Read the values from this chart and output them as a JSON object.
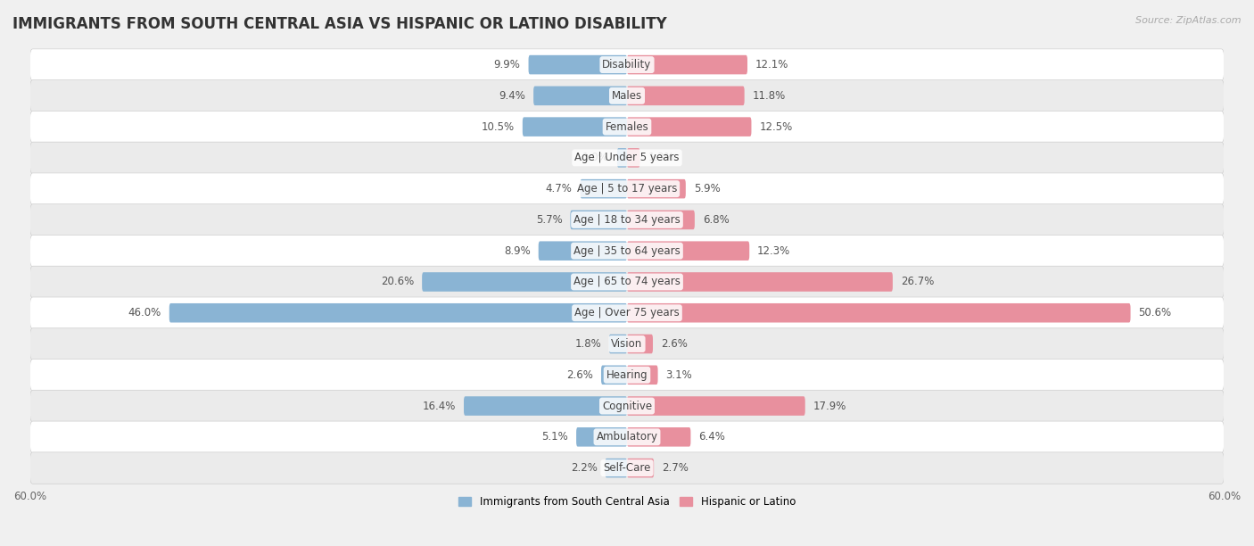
{
  "title": "IMMIGRANTS FROM SOUTH CENTRAL ASIA VS HISPANIC OR LATINO DISABILITY",
  "source": "Source: ZipAtlas.com",
  "categories": [
    "Disability",
    "Males",
    "Females",
    "Age | Under 5 years",
    "Age | 5 to 17 years",
    "Age | 18 to 34 years",
    "Age | 35 to 64 years",
    "Age | 65 to 74 years",
    "Age | Over 75 years",
    "Vision",
    "Hearing",
    "Cognitive",
    "Ambulatory",
    "Self-Care"
  ],
  "left_values": [
    9.9,
    9.4,
    10.5,
    1.0,
    4.7,
    5.7,
    8.9,
    20.6,
    46.0,
    1.8,
    2.6,
    16.4,
    5.1,
    2.2
  ],
  "right_values": [
    12.1,
    11.8,
    12.5,
    1.3,
    5.9,
    6.8,
    12.3,
    26.7,
    50.6,
    2.6,
    3.1,
    17.9,
    6.4,
    2.7
  ],
  "left_color": "#8ab4d4",
  "right_color": "#e8909e",
  "left_label": "Immigrants from South Central Asia",
  "right_label": "Hispanic or Latino",
  "xlim": 60.0,
  "row_color_even": "#f0f0f0",
  "row_color_odd": "#e8e8e8",
  "background_color": "#f0f0f0",
  "title_fontsize": 12,
  "value_fontsize": 8.5,
  "label_fontsize": 8.5,
  "cat_fontsize": 8.5
}
